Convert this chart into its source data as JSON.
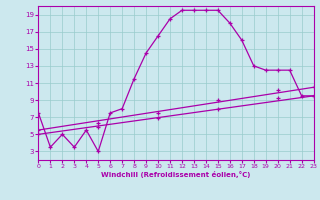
{
  "xlabel": "Windchill (Refroidissement éolien,°C)",
  "bg_color": "#cce8ee",
  "grid_color": "#99cccc",
  "line_color": "#aa00aa",
  "xmin": 0,
  "xmax": 23,
  "ymin": 2,
  "ymax": 20,
  "yticks": [
    3,
    5,
    7,
    9,
    11,
    13,
    15,
    17,
    19
  ],
  "xticks": [
    0,
    1,
    2,
    3,
    4,
    5,
    6,
    7,
    8,
    9,
    10,
    11,
    12,
    13,
    14,
    15,
    16,
    17,
    18,
    19,
    20,
    21,
    22,
    23
  ],
  "line1_x": [
    0,
    1,
    2,
    3,
    4,
    5,
    6,
    7,
    8,
    9,
    10,
    11,
    12,
    13,
    14,
    15,
    16,
    17,
    18,
    19,
    20,
    21,
    22,
    23
  ],
  "line1_y": [
    7.5,
    3.5,
    5.0,
    3.5,
    5.5,
    3.0,
    7.5,
    8.0,
    11.5,
    14.5,
    16.5,
    18.5,
    19.5,
    19.5,
    19.5,
    19.5,
    18.0,
    16.0,
    13.0,
    12.5,
    12.5,
    12.5,
    9.5,
    9.5
  ],
  "line2_x": [
    0,
    23
  ],
  "line2_y": [
    5.0,
    9.5
  ],
  "line3_x": [
    0,
    23
  ],
  "line3_y": [
    5.5,
    10.5
  ],
  "marker2_x": [
    0,
    5,
    10,
    15,
    20,
    23
  ],
  "marker2_y": [
    5.0,
    5.8,
    6.9,
    8.0,
    9.3,
    9.5
  ],
  "marker3_x": [
    0,
    5,
    10,
    15,
    20,
    23
  ],
  "marker3_y": [
    5.5,
    6.3,
    7.5,
    9.0,
    10.2,
    10.5
  ]
}
